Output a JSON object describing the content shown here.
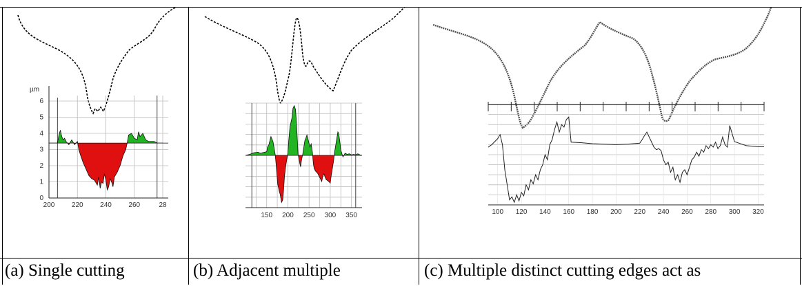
{
  "captions": [
    "(a) Single cutting",
    "(b) Adjacent multiple",
    "(c) Multiple distinct cutting edges act as"
  ],
  "colors": {
    "above": "#22b422",
    "below": "#e01010",
    "line": "#222222"
  },
  "chart_data": [
    {
      "type": "area",
      "xlim": [
        200,
        280
      ],
      "ylim": [
        0,
        6
      ],
      "ylabel": "µm",
      "baseline": 3.4,
      "xticks": [
        "200",
        "220",
        "240",
        "260",
        "28"
      ],
      "yticks": [
        "0",
        "1",
        "2",
        "3",
        "4",
        "5",
        "6"
      ],
      "x": [
        200,
        206,
        207,
        208,
        209,
        210,
        211,
        212,
        213,
        214,
        216,
        218,
        220,
        221,
        222,
        224,
        226,
        228,
        230,
        232,
        234,
        235,
        236,
        237,
        238,
        239,
        240,
        241,
        242,
        243,
        244,
        245,
        246,
        248,
        250,
        252,
        254,
        255,
        256,
        258,
        260,
        262,
        263,
        264,
        265,
        266,
        268,
        270,
        272,
        274,
        276,
        280
      ],
      "y": [
        3.4,
        3.4,
        3.9,
        4.2,
        3.8,
        3.6,
        3.7,
        3.5,
        3.4,
        3.3,
        3.6,
        3.3,
        3.5,
        3.0,
        2.7,
        2.2,
        1.8,
        1.4,
        1.2,
        1.1,
        0.8,
        1.3,
        0.6,
        1.0,
        0.9,
        1.5,
        1.1,
        0.5,
        0.7,
        1.2,
        1.0,
        0.7,
        1.3,
        1.6,
        2.0,
        2.6,
        3.0,
        3.4,
        3.9,
        4.0,
        3.7,
        3.6,
        4.1,
        3.8,
        3.9,
        4.0,
        3.6,
        3.5,
        3.5,
        3.5,
        3.4,
        3.4
      ]
    },
    {
      "type": "area",
      "xlim": [
        100,
        375
      ],
      "ylim": [
        -10,
        10
      ],
      "baseline": 0,
      "xticks": [
        "150",
        "200",
        "250",
        "300",
        "350"
      ],
      "x": [
        100,
        110,
        120,
        130,
        135,
        140,
        145,
        150,
        152,
        155,
        160,
        165,
        170,
        172,
        174,
        176,
        178,
        180,
        182,
        185,
        188,
        190,
        192,
        195,
        198,
        200,
        202,
        205,
        210,
        212,
        215,
        218,
        220,
        222,
        224,
        226,
        228,
        230,
        232,
        235,
        240,
        242,
        245,
        250,
        252,
        255,
        258,
        260,
        262,
        265,
        270,
        275,
        280,
        282,
        285,
        290,
        295,
        300,
        302,
        305,
        308,
        310,
        312,
        315,
        318,
        320,
        322,
        325,
        328,
        330,
        335,
        340,
        345,
        350,
        355,
        360,
        365,
        370,
        375
      ],
      "y": [
        0,
        0.2,
        0.5,
        0.6,
        0.4,
        0.5,
        0.6,
        0.7,
        1.6,
        2.0,
        3.6,
        2.6,
        0.2,
        -1.5,
        -3.5,
        -5.5,
        -6.2,
        -7.0,
        -7.5,
        -9.0,
        -8.5,
        -6.5,
        -4.0,
        -2.0,
        -0.5,
        0.5,
        2.8,
        5.5,
        7.3,
        9.0,
        9.5,
        8.8,
        6.5,
        3.5,
        0.2,
        -0.5,
        -1.5,
        -2.2,
        -1.0,
        0.2,
        2.8,
        3.2,
        3.9,
        2.3,
        1.6,
        2.2,
        0.5,
        -1.5,
        -2.5,
        -3.0,
        -3.4,
        -4.2,
        -5.0,
        -4.1,
        -3.5,
        -4.6,
        -4.9,
        -5.3,
        -4.0,
        -2.5,
        -1.0,
        0.5,
        1.5,
        3.0,
        4.5,
        4.2,
        3.0,
        1.0,
        0.2,
        -0.3,
        0.4,
        0.2,
        0.3,
        0.1,
        0.2,
        0.1,
        0.3,
        0.1,
        0
      ]
    },
    {
      "type": "line",
      "xlim": [
        92,
        325
      ],
      "ylim": [
        -10,
        10
      ],
      "xticks": [
        "100",
        "120",
        "140",
        "160",
        "180",
        "200",
        "220",
        "240",
        "260",
        "280",
        "300",
        "320"
      ],
      "x": [
        92,
        95,
        100,
        102,
        104,
        106,
        108,
        110,
        112,
        114,
        116,
        118,
        120,
        122,
        124,
        126,
        128,
        130,
        132,
        134,
        136,
        138,
        140,
        142,
        144,
        146,
        148,
        150,
        152,
        154,
        156,
        158,
        160,
        162,
        170,
        180,
        190,
        200,
        210,
        220,
        222,
        224,
        226,
        228,
        230,
        232,
        234,
        236,
        238,
        240,
        242,
        244,
        246,
        248,
        250,
        252,
        254,
        256,
        258,
        260,
        262,
        264,
        266,
        268,
        270,
        272,
        274,
        276,
        278,
        280,
        282,
        284,
        286,
        288,
        290,
        292,
        294,
        296,
        300,
        305,
        310,
        315,
        320,
        325
      ],
      "y": [
        1.5,
        2.0,
        3.2,
        4.0,
        2.0,
        -3.0,
        -6.0,
        -9.0,
        -8.4,
        -9.5,
        -8.0,
        -9.2,
        -7.5,
        -8.2,
        -6.0,
        -7.0,
        -5.0,
        -5.8,
        -4.0,
        -5.0,
        -3.0,
        -2.0,
        0.0,
        -1.0,
        2.0,
        3.0,
        5.0,
        6.5,
        4.5,
        6.0,
        5.5,
        7.0,
        7.5,
        2.5,
        2.4,
        2.2,
        2.1,
        2.0,
        2.1,
        2.3,
        3.0,
        3.8,
        4.5,
        3.5,
        2.5,
        1.5,
        1.0,
        1.2,
        0.8,
        -1.0,
        -2.0,
        -1.5,
        -3.5,
        -2.5,
        -5.0,
        -4.0,
        -5.5,
        -3.5,
        -3.0,
        -4.0,
        -2.5,
        -1.0,
        -0.5,
        0.5,
        -0.3,
        1.0,
        0.5,
        1.8,
        1.2,
        2.0,
        1.5,
        2.5,
        1.2,
        1.8,
        3.5,
        2.0,
        1.5,
        5.8,
        2.6,
        2.2,
        1.8,
        1.7,
        1.6,
        1.6
      ]
    }
  ]
}
